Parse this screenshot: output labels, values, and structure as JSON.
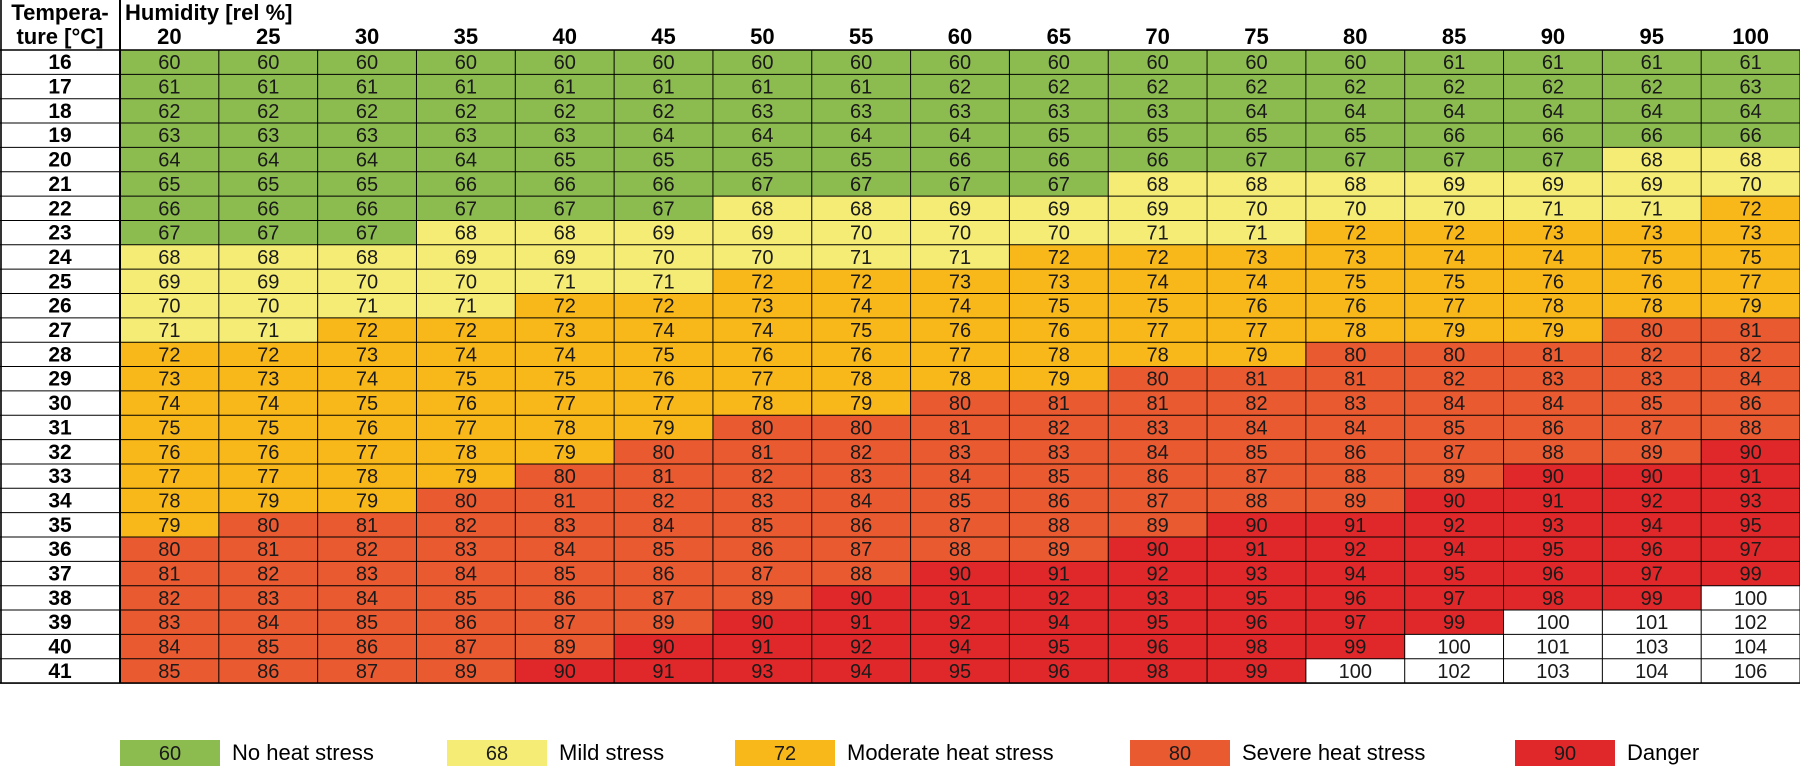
{
  "header": {
    "corner_line1": "Tempera-",
    "corner_line2": "ture [°C]",
    "humidity_label": "Humidity [rel %]"
  },
  "colors": {
    "none": "#8cbb4f",
    "mild": "#f4ec74",
    "moderate": "#f9b81a",
    "severe": "#e95a31",
    "danger": "#e0282a",
    "extreme": "#ffffff"
  },
  "legend": [
    {
      "value": "60",
      "label": "No heat stress",
      "level": "none"
    },
    {
      "value": "68",
      "label": "Mild stress",
      "level": "mild"
    },
    {
      "value": "72",
      "label": "Moderate heat stress",
      "level": "moderate"
    },
    {
      "value": "80",
      "label": "Severe heat stress",
      "level": "severe"
    },
    {
      "value": "90",
      "label": "Danger",
      "level": "danger"
    }
  ],
  "chart_data": {
    "type": "heatmap",
    "x_title": "Humidity [rel %]",
    "y_title": "Tempera-ture [°C]",
    "humidity": [
      20,
      25,
      30,
      35,
      40,
      45,
      50,
      55,
      60,
      65,
      70,
      75,
      80,
      85,
      90,
      95,
      100
    ],
    "temperature": [
      16,
      17,
      18,
      19,
      20,
      21,
      22,
      23,
      24,
      25,
      26,
      27,
      28,
      29,
      30,
      31,
      32,
      33,
      34,
      35,
      36,
      37,
      38,
      39,
      40,
      41
    ],
    "values": [
      [
        60,
        60,
        60,
        60,
        60,
        60,
        60,
        60,
        60,
        60,
        60,
        60,
        60,
        61,
        61,
        61,
        61
      ],
      [
        61,
        61,
        61,
        61,
        61,
        61,
        61,
        61,
        62,
        62,
        62,
        62,
        62,
        62,
        62,
        62,
        63
      ],
      [
        62,
        62,
        62,
        62,
        62,
        62,
        63,
        63,
        63,
        63,
        63,
        64,
        64,
        64,
        64,
        64,
        64
      ],
      [
        63,
        63,
        63,
        63,
        63,
        64,
        64,
        64,
        64,
        65,
        65,
        65,
        65,
        66,
        66,
        66,
        66
      ],
      [
        64,
        64,
        64,
        64,
        65,
        65,
        65,
        65,
        66,
        66,
        66,
        67,
        67,
        67,
        67,
        68,
        68
      ],
      [
        65,
        65,
        65,
        66,
        66,
        66,
        67,
        67,
        67,
        67,
        68,
        68,
        68,
        69,
        69,
        69,
        70
      ],
      [
        66,
        66,
        66,
        67,
        67,
        67,
        68,
        68,
        69,
        69,
        69,
        70,
        70,
        70,
        71,
        71,
        72
      ],
      [
        67,
        67,
        67,
        68,
        68,
        69,
        69,
        70,
        70,
        70,
        71,
        71,
        72,
        72,
        73,
        73,
        73
      ],
      [
        68,
        68,
        68,
        69,
        69,
        70,
        70,
        71,
        71,
        72,
        72,
        73,
        73,
        74,
        74,
        75,
        75
      ],
      [
        69,
        69,
        70,
        70,
        71,
        71,
        72,
        72,
        73,
        73,
        74,
        74,
        75,
        75,
        76,
        76,
        77
      ],
      [
        70,
        70,
        71,
        71,
        72,
        72,
        73,
        74,
        74,
        75,
        75,
        76,
        76,
        77,
        78,
        78,
        79
      ],
      [
        71,
        71,
        72,
        72,
        73,
        74,
        74,
        75,
        76,
        76,
        77,
        77,
        78,
        79,
        79,
        80,
        81
      ],
      [
        72,
        72,
        73,
        74,
        74,
        75,
        76,
        76,
        77,
        78,
        78,
        79,
        80,
        80,
        81,
        82,
        82
      ],
      [
        73,
        73,
        74,
        75,
        75,
        76,
        77,
        78,
        78,
        79,
        80,
        81,
        81,
        82,
        83,
        83,
        84
      ],
      [
        74,
        74,
        75,
        76,
        77,
        77,
        78,
        79,
        80,
        81,
        81,
        82,
        83,
        84,
        84,
        85,
        86
      ],
      [
        75,
        75,
        76,
        77,
        78,
        79,
        80,
        80,
        81,
        82,
        83,
        84,
        84,
        85,
        86,
        87,
        88
      ],
      [
        76,
        76,
        77,
        78,
        79,
        80,
        81,
        82,
        83,
        83,
        84,
        85,
        86,
        87,
        88,
        89,
        90
      ],
      [
        77,
        77,
        78,
        79,
        80,
        81,
        82,
        83,
        84,
        85,
        86,
        87,
        88,
        89,
        90,
        90,
        91
      ],
      [
        78,
        79,
        79,
        80,
        81,
        82,
        83,
        84,
        85,
        86,
        87,
        88,
        89,
        90,
        91,
        92,
        93
      ],
      [
        79,
        80,
        81,
        82,
        83,
        84,
        85,
        86,
        87,
        88,
        89,
        90,
        91,
        92,
        93,
        94,
        95
      ],
      [
        80,
        81,
        82,
        83,
        84,
        85,
        86,
        87,
        88,
        89,
        90,
        91,
        92,
        94,
        95,
        96,
        97
      ],
      [
        81,
        82,
        83,
        84,
        85,
        86,
        87,
        88,
        90,
        91,
        92,
        93,
        94,
        95,
        96,
        97,
        99
      ],
      [
        82,
        83,
        84,
        85,
        86,
        87,
        89,
        90,
        91,
        92,
        93,
        95,
        96,
        97,
        98,
        99,
        100
      ],
      [
        83,
        84,
        85,
        86,
        87,
        89,
        90,
        91,
        92,
        94,
        95,
        96,
        97,
        99,
        100,
        101,
        102
      ],
      [
        84,
        85,
        86,
        87,
        89,
        90,
        91,
        92,
        94,
        95,
        96,
        98,
        99,
        100,
        101,
        103,
        104
      ],
      [
        85,
        86,
        87,
        89,
        90,
        91,
        93,
        94,
        95,
        96,
        98,
        99,
        100,
        102,
        103,
        104,
        106
      ]
    ],
    "thresholds": {
      "mild": 68,
      "moderate": 72,
      "severe": 80,
      "danger": 90,
      "extreme": 100
    },
    "grid": true,
    "legend_position": "bottom"
  }
}
